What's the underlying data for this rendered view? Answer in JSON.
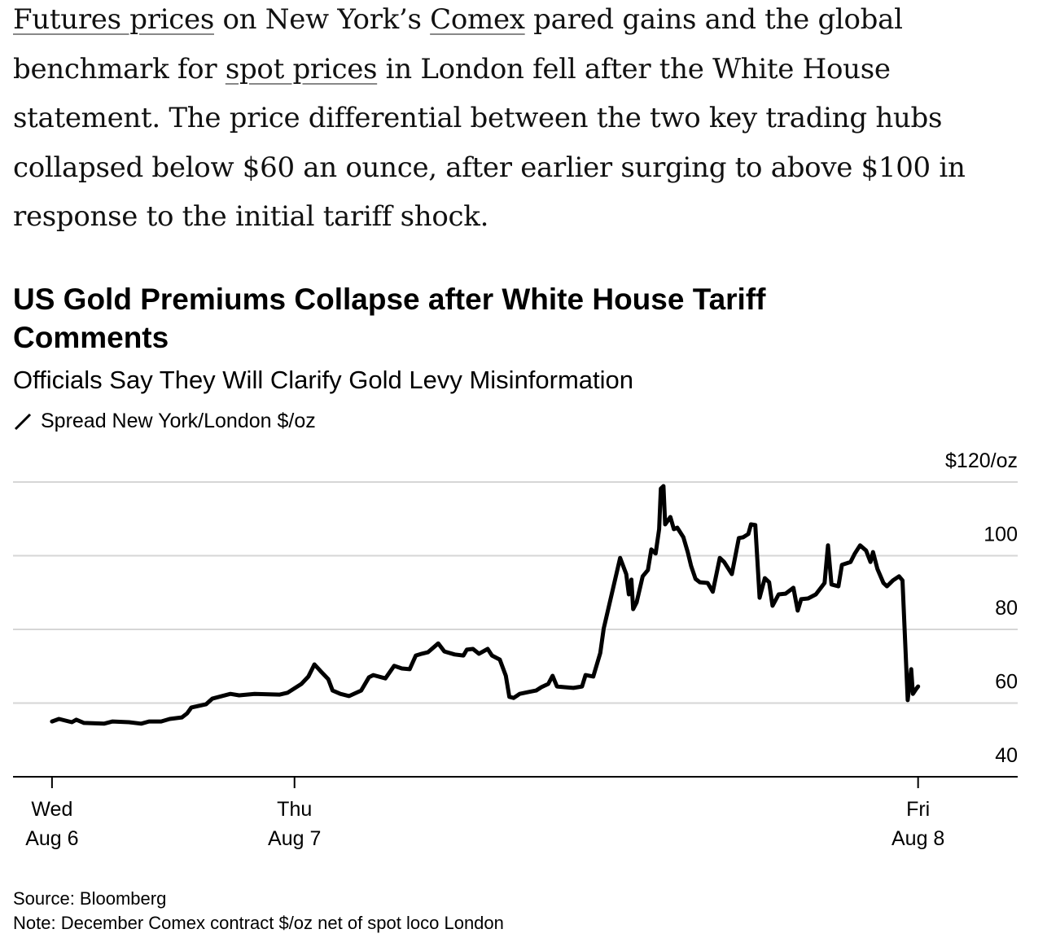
{
  "article": {
    "segments": [
      {
        "text": "Futures prices",
        "link": true
      },
      {
        "text": " on New York’s ",
        "link": false
      },
      {
        "text": "Comex",
        "link": true
      },
      {
        "text": " pared gains and the global benchmark for ",
        "link": false
      },
      {
        "text": "spot prices",
        "link": true
      },
      {
        "text": " in London fell after the White House statement. The price differential between the two key trading hubs collapsed below $60 an ounce, after earlier surging to above $100 in response to the initial tariff shock.",
        "link": false
      }
    ]
  },
  "chart_data": {
    "type": "line",
    "title": "US Gold Premiums Collapse after White House Tariff Comments",
    "subtitle": "Officials Say They Will Clarify Gold Levy Misinformation",
    "legend": [
      {
        "name": "Spread New York/London $/oz",
        "color": "#000000",
        "icon": "line-slash-icon"
      }
    ],
    "ylabel": "$/oz",
    "ylim": [
      40,
      120
    ],
    "y_ticks": [
      {
        "value": 120,
        "label": "$120/oz"
      },
      {
        "value": 100,
        "label": "100"
      },
      {
        "value": 80,
        "label": "80"
      },
      {
        "value": 60,
        "label": "60"
      },
      {
        "value": 40,
        "label": "40"
      }
    ],
    "x_unit": "time index (Wed Aug 6 = 0, Fri Aug 8 = 100)",
    "xlim": [
      -4.5,
      111.5
    ],
    "x_ticks": [
      {
        "value": 0,
        "line1": "Wed",
        "line2": "Aug 6"
      },
      {
        "value": 28,
        "line1": "Thu",
        "line2": "Aug 7"
      },
      {
        "value": 100,
        "line1": "Fri",
        "line2": "Aug 8"
      }
    ],
    "grid": true,
    "series": [
      {
        "name": "Spread New York/London $/oz",
        "color": "#000000",
        "points": [
          [
            0,
            55.0
          ],
          [
            0.8,
            55.7
          ],
          [
            2.3,
            54.8
          ],
          [
            2.8,
            55.5
          ],
          [
            3.7,
            54.6
          ],
          [
            6.0,
            54.4
          ],
          [
            7.0,
            55.0
          ],
          [
            8.9,
            54.8
          ],
          [
            10.3,
            54.4
          ],
          [
            11.2,
            55.0
          ],
          [
            12.6,
            55.0
          ],
          [
            13.6,
            55.7
          ],
          [
            15.0,
            56.1
          ],
          [
            15.6,
            57.2
          ],
          [
            16.1,
            58.8
          ],
          [
            17.8,
            59.7
          ],
          [
            18.5,
            61.2
          ],
          [
            20.6,
            62.5
          ],
          [
            21.6,
            62.1
          ],
          [
            23.4,
            62.5
          ],
          [
            26.3,
            62.3
          ],
          [
            27.2,
            62.8
          ],
          [
            28.8,
            65.2
          ],
          [
            29.6,
            67.2
          ],
          [
            30.3,
            70.5
          ],
          [
            31.0,
            68.7
          ],
          [
            31.9,
            66.5
          ],
          [
            32.4,
            63.4
          ],
          [
            33.3,
            62.5
          ],
          [
            34.3,
            61.9
          ],
          [
            35.7,
            63.4
          ],
          [
            36.6,
            67.0
          ],
          [
            37.1,
            67.6
          ],
          [
            38.5,
            66.7
          ],
          [
            39.5,
            70.1
          ],
          [
            40.4,
            69.4
          ],
          [
            41.3,
            69.2
          ],
          [
            42.0,
            72.9
          ],
          [
            42.7,
            73.4
          ],
          [
            43.4,
            73.8
          ],
          [
            44.6,
            76.2
          ],
          [
            45.3,
            74.0
          ],
          [
            46.5,
            73.2
          ],
          [
            47.5,
            72.9
          ],
          [
            47.9,
            74.5
          ],
          [
            48.6,
            74.7
          ],
          [
            49.3,
            73.4
          ],
          [
            50.3,
            74.7
          ],
          [
            50.8,
            72.9
          ],
          [
            51.7,
            71.8
          ],
          [
            52.4,
            67.4
          ],
          [
            52.8,
            61.7
          ],
          [
            53.3,
            61.4
          ],
          [
            54.0,
            62.5
          ],
          [
            55.0,
            63.0
          ],
          [
            55.9,
            63.4
          ],
          [
            56.5,
            64.3
          ],
          [
            57.3,
            65.2
          ],
          [
            57.8,
            67.4
          ],
          [
            58.3,
            64.5
          ],
          [
            59.2,
            64.3
          ],
          [
            60.2,
            64.1
          ],
          [
            61.2,
            64.5
          ],
          [
            61.6,
            67.6
          ],
          [
            62.5,
            67.2
          ],
          [
            63.3,
            73.6
          ],
          [
            63.7,
            80.2
          ],
          [
            65.6,
            99.4
          ],
          [
            66.3,
            95.0
          ],
          [
            66.6,
            89.5
          ],
          [
            66.9,
            93.5
          ],
          [
            67.1,
            85.5
          ],
          [
            67.5,
            87.3
          ],
          [
            68.2,
            94.4
          ],
          [
            68.8,
            96.1
          ],
          [
            69.2,
            101.7
          ],
          [
            69.7,
            100.6
          ],
          [
            70.1,
            107.2
          ],
          [
            70.3,
            118.2
          ],
          [
            70.6,
            118.9
          ],
          [
            70.8,
            108.5
          ],
          [
            71.4,
            110.5
          ],
          [
            71.8,
            107.2
          ],
          [
            72.2,
            107.6
          ],
          [
            72.9,
            105.0
          ],
          [
            73.4,
            101.0
          ],
          [
            73.8,
            97.2
          ],
          [
            74.3,
            93.7
          ],
          [
            74.8,
            92.8
          ],
          [
            75.7,
            92.6
          ],
          [
            76.3,
            90.2
          ],
          [
            77.1,
            99.4
          ],
          [
            77.6,
            98.3
          ],
          [
            78.5,
            95.0
          ],
          [
            79.3,
            104.8
          ],
          [
            79.8,
            105.0
          ],
          [
            80.4,
            105.9
          ],
          [
            80.7,
            108.5
          ],
          [
            81.2,
            108.3
          ],
          [
            81.7,
            88.6
          ],
          [
            82.3,
            93.9
          ],
          [
            82.8,
            92.8
          ],
          [
            83.2,
            86.4
          ],
          [
            83.9,
            89.5
          ],
          [
            84.7,
            89.7
          ],
          [
            85.6,
            91.3
          ],
          [
            86.1,
            85.1
          ],
          [
            86.5,
            88.2
          ],
          [
            87.3,
            88.4
          ],
          [
            88.2,
            89.5
          ],
          [
            89.2,
            92.6
          ],
          [
            89.6,
            102.8
          ],
          [
            90.0,
            92.2
          ],
          [
            90.8,
            91.7
          ],
          [
            91.2,
            97.5
          ],
          [
            92.2,
            98.3
          ],
          [
            92.7,
            100.6
          ],
          [
            93.3,
            102.8
          ],
          [
            94.0,
            101.4
          ],
          [
            94.5,
            98.3
          ],
          [
            94.8,
            101.0
          ],
          [
            95.3,
            96.4
          ],
          [
            96.0,
            92.6
          ],
          [
            96.4,
            91.7
          ],
          [
            97.1,
            93.3
          ],
          [
            97.8,
            94.4
          ],
          [
            98.2,
            93.3
          ],
          [
            98.8,
            60.8
          ],
          [
            99.2,
            69.2
          ],
          [
            99.4,
            62.5
          ],
          [
            99.8,
            63.9
          ],
          [
            100.0,
            64.5
          ]
        ]
      }
    ],
    "source": "Source: Bloomberg",
    "note": "Note: December Comex contract $/oz net of spot loco London"
  }
}
